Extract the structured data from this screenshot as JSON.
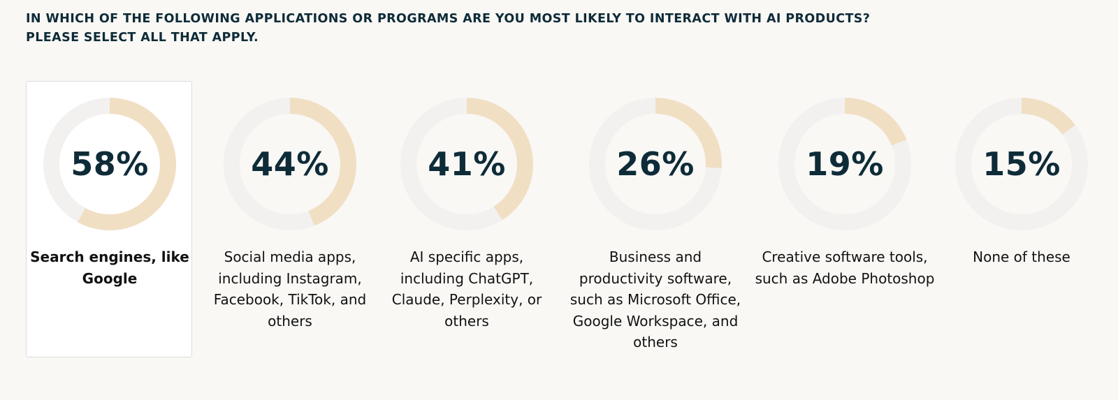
{
  "question": {
    "line1": "IN WHICH OF THE FOLLOWING APPLICATIONS OR PROGRAMS ARE YOU MOST LIKELY TO INTERACT WITH AI PRODUCTS?",
    "line2": "PLEASE SELECT ALL THAT APPLY."
  },
  "colors": {
    "ring_fill": "#f1dfc4",
    "ring_track": "#f2f1f0",
    "text": "#0e2b38",
    "background": "#f9f8f5"
  },
  "chart_data": {
    "type": "donut",
    "title": "",
    "categories": [
      "Search engines, like Google",
      "Social media apps, including Instagram, Facebook, TikTok, and others",
      "AI specific apps, including ChatGPT, Claude, Perplexity, or others",
      "Business and productivity software, such as Microsoft Office, Google Workspace, and others",
      "Creative software tools, such as Adobe Photoshop",
      "None of these"
    ],
    "values": [
      58,
      44,
      41,
      26,
      19,
      15
    ],
    "unit": "%"
  },
  "options": [
    {
      "pct_text": "58%",
      "value": 58,
      "label": "Search engines, like Google",
      "selected": true
    },
    {
      "pct_text": "44%",
      "value": 44,
      "label": "Social media apps, including Instagram, Facebook, TikTok, and others",
      "selected": false
    },
    {
      "pct_text": "41%",
      "value": 41,
      "label": "AI specific apps, including ChatGPT, Claude, Perplexity, or others",
      "selected": false
    },
    {
      "pct_text": "26%",
      "value": 26,
      "label": "Business and productivity software, such as Microsoft Office, Google Workspace, and others",
      "selected": false
    },
    {
      "pct_text": "19%",
      "value": 19,
      "label": "Creative software tools, such as Adobe Photoshop",
      "selected": false
    },
    {
      "pct_text": "15%",
      "value": 15,
      "label": "None of these",
      "selected": false
    }
  ]
}
